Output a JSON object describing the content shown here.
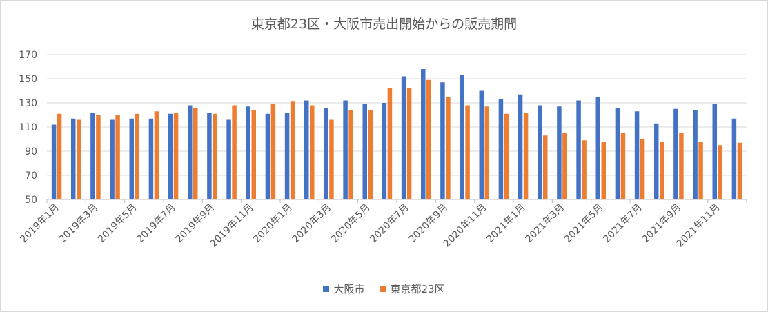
{
  "chart_data": {
    "type": "bar",
    "title": "東京都23区・大阪市売出開始からの販売期間",
    "ylim": [
      50,
      170
    ],
    "yticks": [
      50,
      70,
      90,
      110,
      130,
      150,
      170
    ],
    "grid": true,
    "legend_position": "bottom",
    "categories": [
      "2019年1月",
      "2019年2月",
      "2019年3月",
      "2019年4月",
      "2019年5月",
      "2019年6月",
      "2019年7月",
      "2019年8月",
      "2019年9月",
      "2019年10月",
      "2019年11月",
      "2019年12月",
      "2020年1月",
      "2020年2月",
      "2020年3月",
      "2020年4月",
      "2020年5月",
      "2020年6月",
      "2020年7月",
      "2020年8月",
      "2020年9月",
      "2020年10月",
      "2020年11月",
      "2020年12月",
      "2021年1月",
      "2021年2月",
      "2021年3月",
      "2021年4月",
      "2021年5月",
      "2021年6月",
      "2021年7月",
      "2021年8月",
      "2021年9月",
      "2021年10月",
      "2021年11月",
      "2021年12月"
    ],
    "tick_labels": [
      "2019年1月",
      "2019年3月",
      "2019年5月",
      "2019年7月",
      "2019年9月",
      "2019年11月",
      "2020年1月",
      "2020年3月",
      "2020年5月",
      "2020年7月",
      "2020年9月",
      "2020年11月",
      "2021年1月",
      "2021年3月",
      "2021年5月",
      "2021年7月",
      "2021年9月",
      "2021年11月"
    ],
    "series": [
      {
        "name": "大阪市",
        "color": "#4472c4",
        "values": [
          112,
          117,
          122,
          116,
          117,
          117,
          121,
          128,
          122,
          116,
          127,
          121,
          122,
          132,
          126,
          132,
          129,
          130,
          152,
          158,
          147,
          153,
          140,
          133,
          137,
          128,
          127,
          132,
          135,
          126,
          123,
          113,
          125,
          124,
          129,
          117
        ]
      },
      {
        "name": "東京都23区",
        "color": "#ed7d31",
        "values": [
          121,
          116,
          120,
          120,
          121,
          123,
          122,
          126,
          121,
          128,
          124,
          129,
          131,
          128,
          116,
          124,
          124,
          142,
          142,
          149,
          135,
          128,
          127,
          121,
          122,
          103,
          105,
          99,
          98,
          105,
          100,
          98,
          105,
          98,
          95,
          97
        ]
      }
    ]
  }
}
